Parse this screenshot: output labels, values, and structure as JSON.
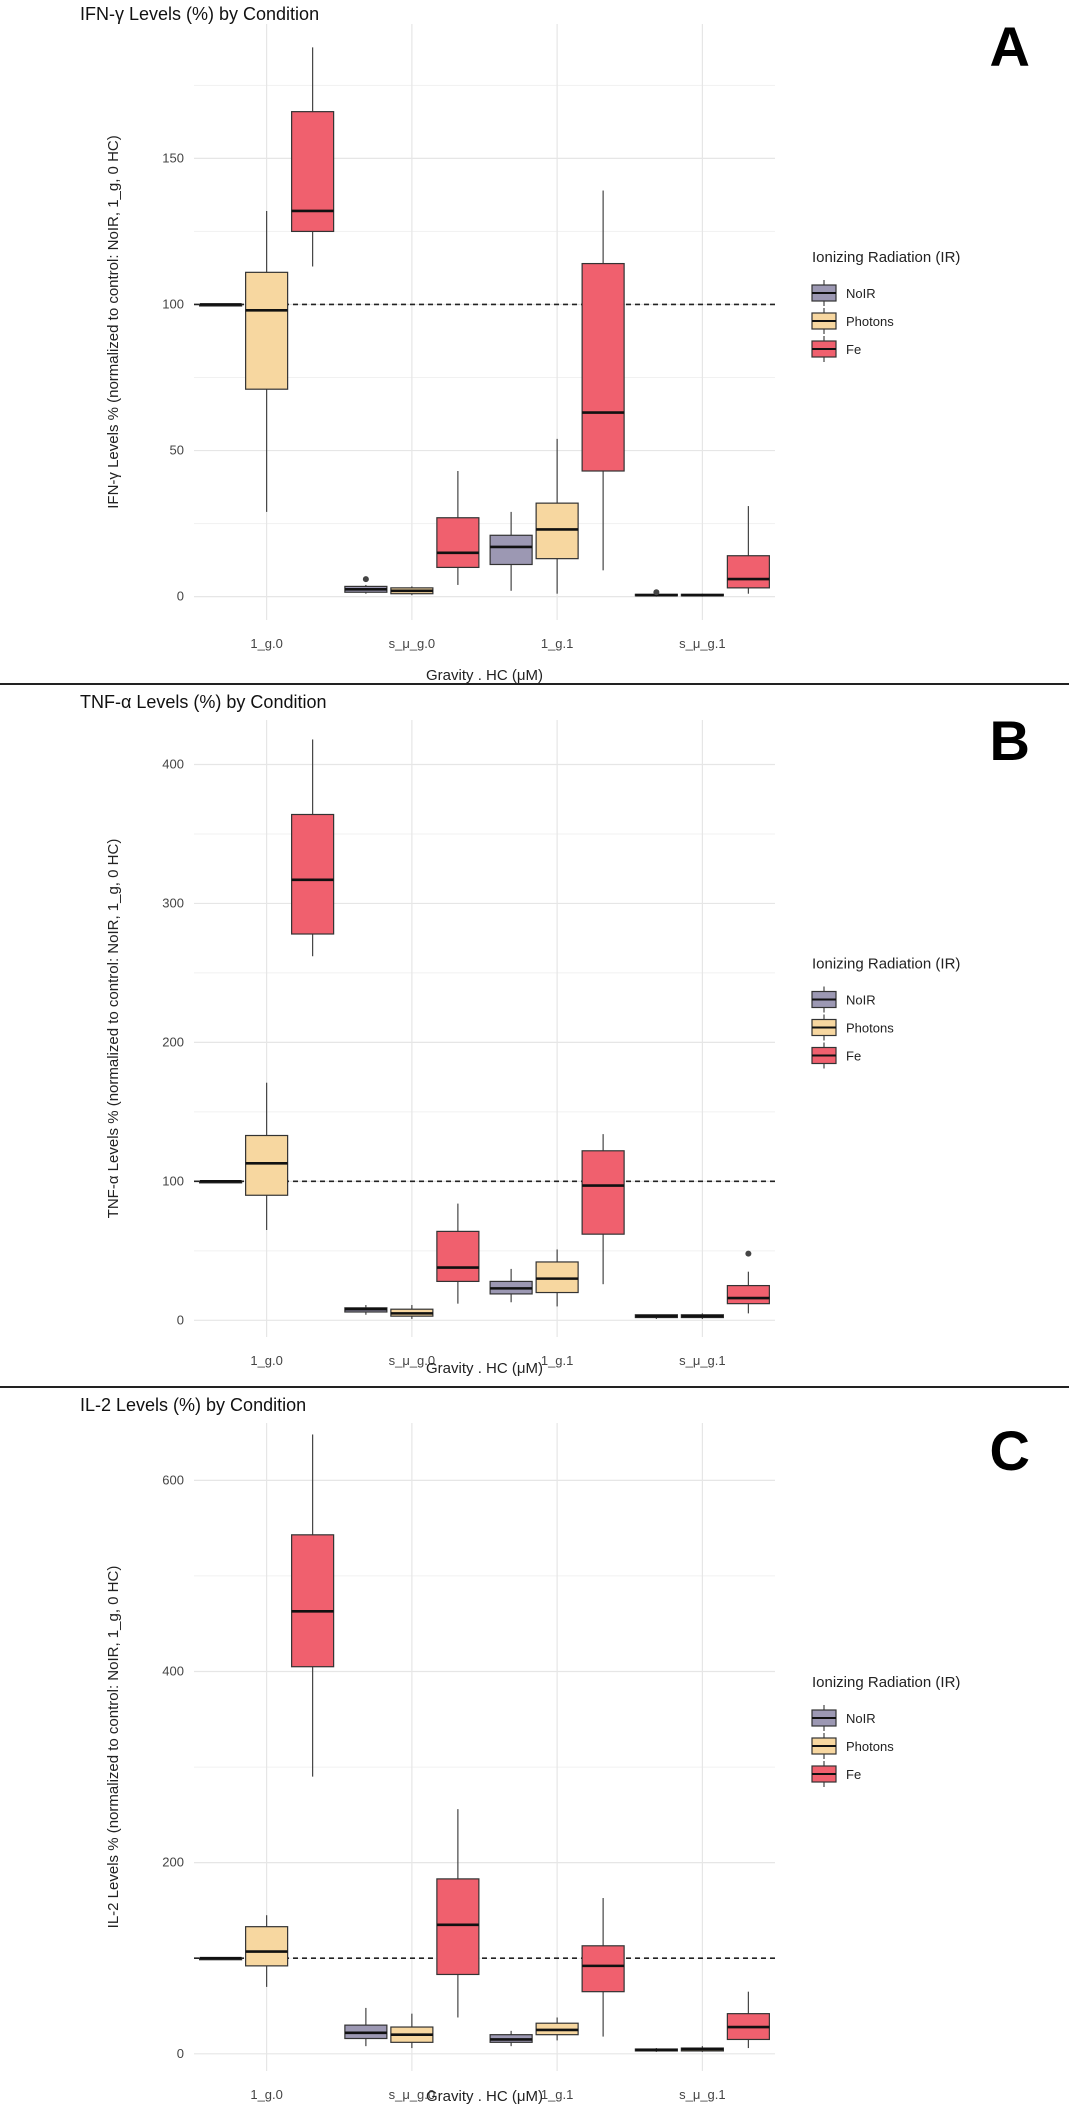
{
  "chart_data": [
    {
      "type": "box",
      "panel_label": "A",
      "title": "IFN-γ Levels (%) by Condition",
      "xlabel": "Gravity . HC (μM)",
      "ylabel": "IFN-γ Levels % (normalized to control: NoIR, 1_g, 0 HC)",
      "ylim": [
        -8,
        196
      ],
      "yticks": [
        0,
        50,
        100,
        150
      ],
      "reference_line": 100,
      "categories": [
        "1_g.0",
        "s_μ_g.0",
        "1_g.1",
        "s_μ_g.1"
      ],
      "legend": {
        "title": "Ionizing Radiation (IR)",
        "entries": [
          "NoIR",
          "Photons",
          "Fe"
        ]
      },
      "series": [
        {
          "name": "NoIR",
          "color": "#9c98b3",
          "boxes": [
            {
              "min": 100,
              "q1": 100,
              "median": 100,
              "q3": 100,
              "max": 100
            },
            {
              "min": 1,
              "q1": 1.5,
              "median": 2.5,
              "q3": 3.5,
              "max": 4,
              "outliers": [
                6
              ]
            },
            {
              "min": 2,
              "q1": 11,
              "median": 17,
              "q3": 21,
              "max": 29
            },
            {
              "min": 0,
              "q1": 0.3,
              "median": 0.5,
              "q3": 0.8,
              "max": 1,
              "outliers": [
                1.5
              ]
            }
          ]
        },
        {
          "name": "Photons",
          "color": "#f7d7a0",
          "boxes": [
            {
              "min": 29,
              "q1": 71,
              "median": 98,
              "q3": 111,
              "max": 132
            },
            {
              "min": 0.5,
              "q1": 1,
              "median": 2,
              "q3": 3,
              "max": 3.5
            },
            {
              "min": 1,
              "q1": 13,
              "median": 23,
              "q3": 32,
              "max": 54
            },
            {
              "min": 0,
              "q1": 0.3,
              "median": 0.5,
              "q3": 0.8,
              "max": 1
            }
          ]
        },
        {
          "name": "Fe",
          "color": "#f0606e",
          "boxes": [
            {
              "min": 113,
              "q1": 125,
              "median": 132,
              "q3": 166,
              "max": 188
            },
            {
              "min": 4,
              "q1": 10,
              "median": 15,
              "q3": 27,
              "max": 43
            },
            {
              "min": 9,
              "q1": 43,
              "median": 63,
              "q3": 114,
              "max": 139
            },
            {
              "min": 1,
              "q1": 3,
              "median": 6,
              "q3": 14,
              "max": 31
            }
          ]
        }
      ]
    },
    {
      "type": "box",
      "panel_label": "B",
      "title": "TNF-α Levels (%) by Condition",
      "xlabel": "Gravity . HC (μM)",
      "ylabel": "TNF-α Levels % (normalized to control: NoIR, 1_g, 0 HC)",
      "ylim": [
        -12,
        432
      ],
      "yticks": [
        0,
        100,
        200,
        300,
        400
      ],
      "reference_line": 100,
      "categories": [
        "1_g.0",
        "s_μ_g.0",
        "1_g.1",
        "s_μ_g.1"
      ],
      "legend": {
        "title": "Ionizing Radiation (IR)",
        "entries": [
          "NoIR",
          "Photons",
          "Fe"
        ]
      },
      "series": [
        {
          "name": "NoIR",
          "color": "#9c98b3",
          "boxes": [
            {
              "min": 100,
              "q1": 100,
              "median": 100,
              "q3": 100,
              "max": 100
            },
            {
              "min": 4,
              "q1": 6,
              "median": 8,
              "q3": 9,
              "max": 11
            },
            {
              "min": 13,
              "q1": 19,
              "median": 23,
              "q3": 28,
              "max": 37
            },
            {
              "min": 1,
              "q1": 2,
              "median": 3,
              "q3": 4,
              "max": 4
            }
          ]
        },
        {
          "name": "Photons",
          "color": "#f7d7a0",
          "boxes": [
            {
              "min": 65,
              "q1": 90,
              "median": 113,
              "q3": 133,
              "max": 171
            },
            {
              "min": 1,
              "q1": 3,
              "median": 5,
              "q3": 8,
              "max": 11
            },
            {
              "min": 10,
              "q1": 20,
              "median": 30,
              "q3": 42,
              "max": 51
            },
            {
              "min": 1,
              "q1": 2,
              "median": 3,
              "q3": 4,
              "max": 5
            }
          ]
        },
        {
          "name": "Fe",
          "color": "#f0606e",
          "boxes": [
            {
              "min": 262,
              "q1": 278,
              "median": 317,
              "q3": 364,
              "max": 418
            },
            {
              "min": 12,
              "q1": 28,
              "median": 38,
              "q3": 64,
              "max": 84
            },
            {
              "min": 26,
              "q1": 62,
              "median": 97,
              "q3": 122,
              "max": 134
            },
            {
              "min": 5,
              "q1": 12,
              "median": 16,
              "q3": 25,
              "max": 35,
              "outliers": [
                48
              ]
            }
          ]
        }
      ]
    },
    {
      "type": "box",
      "panel_label": "C",
      "title": "IL-2 Levels (%) by Condition",
      "xlabel": "Gravity . HC (μM)",
      "ylabel": "IL-2 Levels % (normalized to control: NoIR, 1_g, 0 HC)",
      "ylim": [
        -18,
        660
      ],
      "yticks": [
        0,
        200,
        400,
        600
      ],
      "reference_line": 100,
      "categories": [
        "1_g.0",
        "s_μ_g.0",
        "1_g.1",
        "s_μ_g.1"
      ],
      "legend": {
        "title": "Ionizing Radiation (IR)",
        "entries": [
          "NoIR",
          "Photons",
          "Fe"
        ]
      },
      "series": [
        {
          "name": "NoIR",
          "color": "#9c98b3",
          "boxes": [
            {
              "min": 100,
              "q1": 100,
              "median": 100,
              "q3": 100,
              "max": 100
            },
            {
              "min": 8,
              "q1": 16,
              "median": 22,
              "q3": 30,
              "max": 48
            },
            {
              "min": 8,
              "q1": 12,
              "median": 15,
              "q3": 20,
              "max": 24
            },
            {
              "min": 2,
              "q1": 3,
              "median": 4,
              "q3": 5,
              "max": 6
            }
          ]
        },
        {
          "name": "Photons",
          "color": "#f7d7a0",
          "boxes": [
            {
              "min": 70,
              "q1": 92,
              "median": 107,
              "q3": 133,
              "max": 145
            },
            {
              "min": 6,
              "q1": 12,
              "median": 20,
              "q3": 28,
              "max": 42
            },
            {
              "min": 14,
              "q1": 20,
              "median": 25,
              "q3": 32,
              "max": 38
            },
            {
              "min": 2,
              "q1": 3,
              "median": 5,
              "q3": 6,
              "max": 8
            }
          ]
        },
        {
          "name": "Fe",
          "color": "#f0606e",
          "boxes": [
            {
              "min": 290,
              "q1": 405,
              "median": 463,
              "q3": 543,
              "max": 648
            },
            {
              "min": 38,
              "q1": 83,
              "median": 135,
              "q3": 183,
              "max": 256
            },
            {
              "min": 18,
              "q1": 65,
              "median": 92,
              "q3": 113,
              "max": 163
            },
            {
              "min": 6,
              "q1": 15,
              "median": 28,
              "q3": 42,
              "max": 65
            }
          ]
        }
      ]
    }
  ]
}
